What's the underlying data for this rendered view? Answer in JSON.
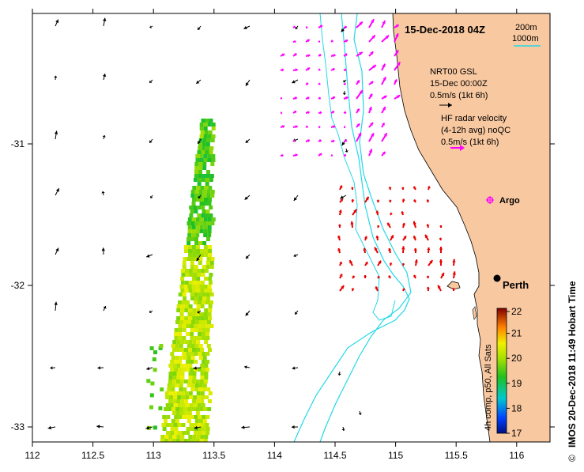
{
  "map": {
    "title": "15-Dec-2018 04Z",
    "depth_legend": {
      "contour_1": "200m",
      "contour_2": "1000m"
    },
    "model_legend": {
      "line1": "NRT00 GSL",
      "line2": "15-Dec 00:00Z",
      "line3": "0.5m/s (1kt 6h)"
    },
    "radar_legend": {
      "line1": "HF radar velocity",
      "line2": "(4-12h avg) noQC",
      "line3": "0.5m/s (1kt 6h)"
    },
    "places": {
      "argo": "Argo",
      "perth": "Perth"
    },
    "x_ticks": [
      "112",
      "112.5",
      "113",
      "113.5",
      "114",
      "114.5",
      "115",
      "115.5",
      "116"
    ],
    "y_ticks": [
      "-31",
      "-32",
      "-33"
    ],
    "credit": "IMOS 20-Dec-2018 11:49 Hobart Time",
    "copyright_symbol": "©"
  },
  "colorbar": {
    "label": "4h comp, p50, All Sats",
    "ticks": [
      "22",
      "21",
      "20",
      "19",
      "18",
      "17"
    ],
    "range": [
      17,
      22
    ]
  },
  "colors": {
    "land": "#f8c8a0",
    "ocean": "#ffffff",
    "contours": "#22d8e8",
    "model_arrows": "#000000",
    "radar_north": "#ff00ff",
    "radar_south": "#e80000",
    "argo": "#ff00ff"
  }
}
